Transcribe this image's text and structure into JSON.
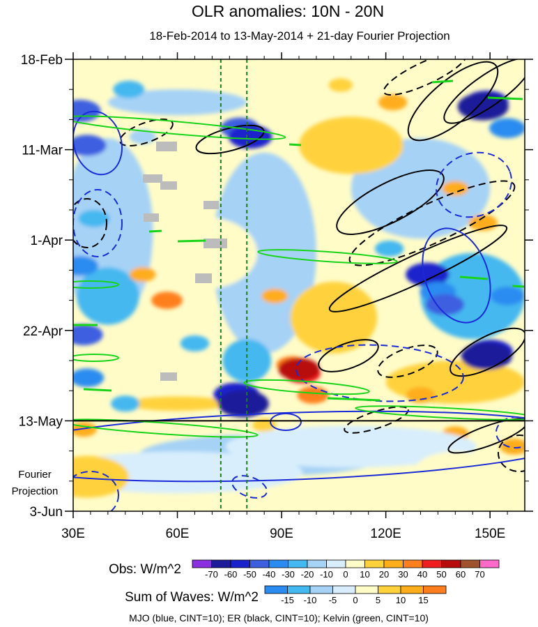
{
  "chart_data": {
    "type": "heatmap",
    "title": "OLR anomalies: 10N - 20N",
    "subtitle": "18-Feb-2014 to 13-May-2014 + 21-day Fourier Projection",
    "x_axis": {
      "range": [
        30,
        160
      ],
      "ticks": [
        30,
        60,
        90,
        120,
        150
      ],
      "tick_labels": [
        "30E",
        "60E",
        "90E",
        "120E",
        "150E"
      ]
    },
    "y_axis": {
      "ticks": [
        0,
        21,
        42,
        63,
        84,
        105
      ],
      "tick_labels": [
        "18-Feb",
        "11-Mar",
        "1-Apr",
        "22-Apr",
        "13-May",
        "3-Jun"
      ],
      "range_days": [
        0,
        105
      ],
      "projection_label": [
        "Fourier",
        "Projection"
      ]
    },
    "observation_end_day": 84,
    "reference_longitudes": [
      72.5,
      80
    ],
    "obs_colorbar": {
      "label": "Obs: W/m^2",
      "levels": [
        "-70",
        "-60",
        "-50",
        "-40",
        "-30",
        "-20",
        "-10",
        "0",
        "10",
        "20",
        "30",
        "40",
        "50",
        "60",
        "70"
      ],
      "colors": [
        "#8b30e0",
        "#1c1c9a",
        "#1a22cc",
        "#3d5fe0",
        "#2a8cf0",
        "#44b8f0",
        "#a6d2f6",
        "#d8eefc",
        "#fffcc8",
        "#ffd23c",
        "#ffad1a",
        "#ff7f1e",
        "#f01e1e",
        "#b80c0c",
        "#a0522d",
        "#ff69c8"
      ]
    },
    "waves_colorbar": {
      "label": "Sum of Waves: W/m^2",
      "levels": [
        "-15",
        "-10",
        "-5",
        "0",
        "5",
        "10",
        "15"
      ],
      "colors": [
        "#2a8cf0",
        "#44b8f0",
        "#a6d2f6",
        "#d8eefc",
        "#fffcc8",
        "#ffd23c",
        "#ffad1a",
        "#ff7f1e"
      ]
    },
    "footer": "MJO (blue, CINT=10); ER (black, CINT=10); Kelvin (green, CINT=10)",
    "wave_contours": {
      "MJO": {
        "color": "#1a2ad6",
        "cint": 10
      },
      "ER": {
        "color": "#000000",
        "cint": 10
      },
      "Kelvin": {
        "color": "#18d418",
        "cint": 10
      }
    },
    "obs_anomaly_regions": [
      {
        "lon": 32,
        "day": 12,
        "val": -50
      },
      {
        "lon": 34,
        "day": 20,
        "val": -45
      },
      {
        "lon": 36,
        "day": 37,
        "val": -30
      },
      {
        "lon": 32,
        "day": 48,
        "val": -40
      },
      {
        "lon": 33,
        "day": 64,
        "val": -45
      },
      {
        "lon": 34,
        "day": 74,
        "val": -35
      },
      {
        "lon": 46,
        "day": 7,
        "val": -30
      },
      {
        "lon": 50,
        "day": 18,
        "val": -20
      },
      {
        "lon": 45,
        "day": 80,
        "val": -25
      },
      {
        "lon": 78,
        "day": 16,
        "val": -45
      },
      {
        "lon": 81,
        "day": 18,
        "val": -55
      },
      {
        "lon": 77,
        "day": 78,
        "val": -60
      },
      {
        "lon": 79,
        "day": 80,
        "val": -70
      },
      {
        "lon": 65,
        "day": 66,
        "val": -25
      },
      {
        "lon": 93,
        "day": 35,
        "val": -15
      },
      {
        "lon": 121,
        "day": 44,
        "val": -25
      },
      {
        "lon": 132,
        "day": 50,
        "val": -55
      },
      {
        "lon": 135,
        "day": 54,
        "val": -40
      },
      {
        "lon": 137,
        "day": 57,
        "val": -45
      },
      {
        "lon": 155,
        "day": 55,
        "val": -35
      },
      {
        "lon": 149,
        "day": 10,
        "val": -55
      },
      {
        "lon": 148,
        "day": 11,
        "val": -70
      },
      {
        "lon": 155,
        "day": 16,
        "val": -40
      },
      {
        "lon": 150,
        "day": 68,
        "val": -60
      },
      {
        "lon": 149,
        "day": 69,
        "val": -70
      },
      {
        "lon": 107,
        "day": 6,
        "val": 15
      },
      {
        "lon": 122,
        "day": 10,
        "val": 25
      },
      {
        "lon": 140,
        "day": 30,
        "val": 20
      },
      {
        "lon": 148,
        "day": 38,
        "val": 25
      },
      {
        "lon": 50,
        "day": 50,
        "val": 20
      },
      {
        "lon": 57,
        "day": 56,
        "val": 30
      },
      {
        "lon": 88,
        "day": 55,
        "val": 20
      },
      {
        "lon": 93,
        "day": 71,
        "val": 30
      },
      {
        "lon": 96,
        "day": 73,
        "val": 40
      },
      {
        "lon": 95,
        "day": 72,
        "val": 50
      },
      {
        "lon": 99,
        "day": 78,
        "val": 30
      },
      {
        "lon": 85,
        "day": 85,
        "val": 15
      },
      {
        "lon": 130,
        "day": 78,
        "val": 25
      },
      {
        "lon": 140,
        "day": 87,
        "val": 20
      },
      {
        "lon": 157,
        "day": 90,
        "val": 25
      },
      {
        "lon": 33,
        "day": 86,
        "val": 20
      }
    ],
    "fourier_projection_regions": [
      {
        "lon": 85,
        "day": 92,
        "val": -7
      },
      {
        "lon": 110,
        "day": 90,
        "val": -5
      },
      {
        "lon": 60,
        "day": 96,
        "val": -4
      },
      {
        "lon": 140,
        "day": 96,
        "val": 3
      },
      {
        "lon": 34,
        "day": 97,
        "val": 6
      }
    ]
  }
}
